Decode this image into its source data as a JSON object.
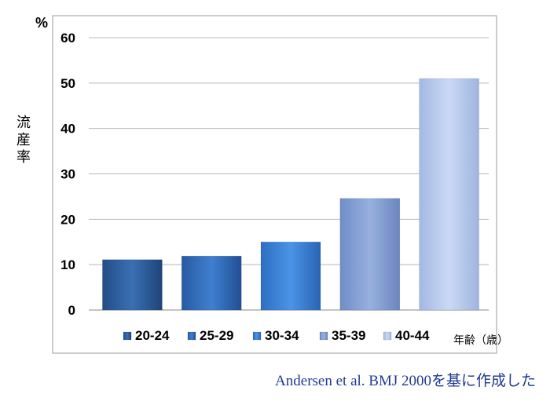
{
  "chart_data": {
    "type": "bar",
    "categories": [
      "20-24",
      "25-29",
      "30-34",
      "35-39",
      "40-44"
    ],
    "values": [
      11.1,
      11.9,
      15.0,
      24.6,
      51.0
    ],
    "ylabel": "流産率",
    "yunit": "%",
    "xlabel": "年齢（歳）",
    "ylim": [
      0,
      60
    ],
    "yticks": [
      0,
      10,
      20,
      30,
      40,
      50,
      60
    ],
    "grid": true,
    "legend_position": "bottom",
    "colors": [
      "#2f5f9e",
      "#2f6fc1",
      "#3a84d9",
      "#7f9bcf",
      "#b4c8ea"
    ]
  },
  "footer": {
    "caption": "Andersen et al. BMJ 2000を基に作成した"
  }
}
